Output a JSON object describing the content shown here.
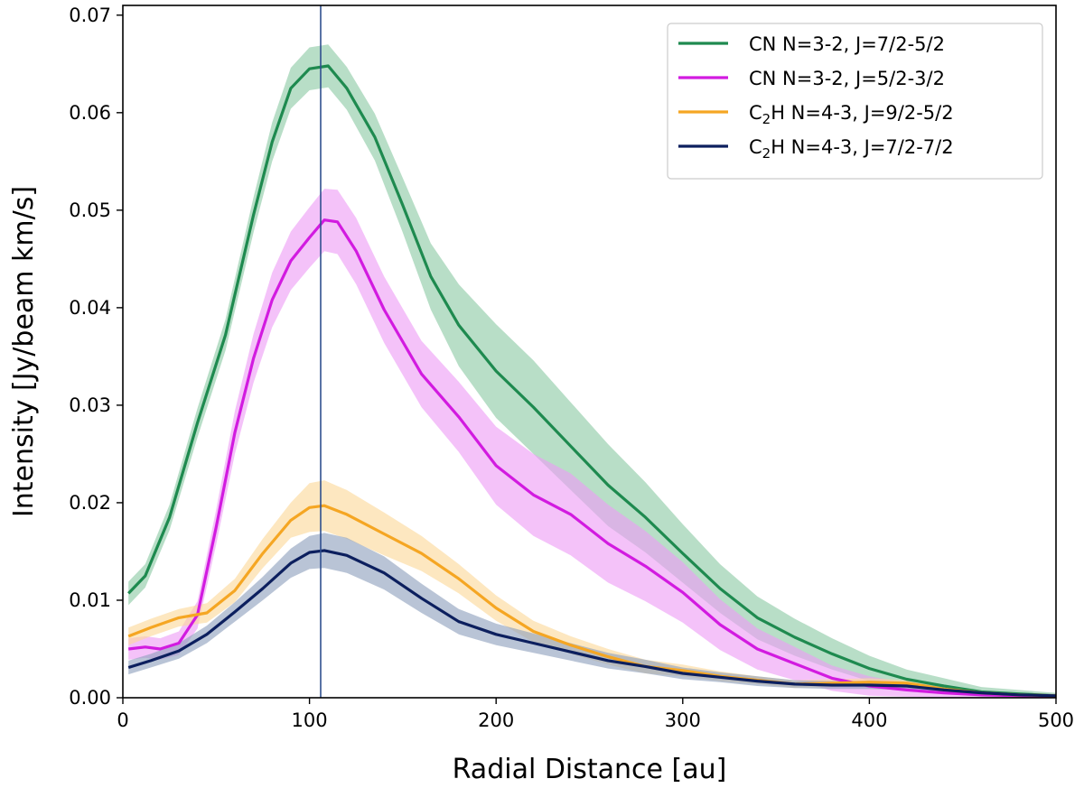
{
  "chart_data": {
    "type": "line",
    "xlabel": "Radial Distance [au]",
    "ylabel": "Intensity [Jy/beam km/s]",
    "xlim": [
      0,
      500
    ],
    "ylim": [
      0,
      0.071
    ],
    "xticks": [
      0,
      100,
      200,
      300,
      400,
      500
    ],
    "yticks": [
      0.0,
      0.01,
      0.02,
      0.03,
      0.04,
      0.05,
      0.06,
      0.07
    ],
    "ytick_labels": [
      "0.00",
      "0.01",
      "0.02",
      "0.03",
      "0.04",
      "0.05",
      "0.06",
      "0.07"
    ],
    "grid": false,
    "legend_position": "top-right",
    "vline_x": 106,
    "vline_color": "#2f4f8f",
    "series": [
      {
        "name": "CN N=3-2, J=7/2-5/2",
        "legend_main": "CN N=3-2, J=7/2-5/2",
        "legend_sub": "",
        "legend_tail": "",
        "color": "#1e8a4f",
        "band_color": "#8ccaa5",
        "x": [
          3,
          12,
          25,
          40,
          55,
          70,
          80,
          90,
          100,
          110,
          120,
          135,
          150,
          165,
          180,
          200,
          220,
          240,
          260,
          280,
          300,
          320,
          340,
          360,
          380,
          400,
          420,
          440,
          460,
          480,
          500
        ],
        "y": [
          0.0107,
          0.0125,
          0.0185,
          0.0282,
          0.0372,
          0.0495,
          0.057,
          0.0625,
          0.0645,
          0.0648,
          0.0625,
          0.0575,
          0.0505,
          0.0432,
          0.0382,
          0.0335,
          0.0298,
          0.0258,
          0.0218,
          0.0185,
          0.0148,
          0.0112,
          0.0082,
          0.0062,
          0.0045,
          0.003,
          0.0019,
          0.0012,
          0.0006,
          0.0004,
          0.0002
        ],
        "err": [
          0.0012,
          0.0012,
          0.0013,
          0.0015,
          0.0016,
          0.0018,
          0.002,
          0.0021,
          0.0022,
          0.0022,
          0.0022,
          0.0024,
          0.0028,
          0.0034,
          0.0042,
          0.0048,
          0.0048,
          0.0045,
          0.0042,
          0.0036,
          0.003,
          0.0025,
          0.0022,
          0.0019,
          0.0016,
          0.0013,
          0.001,
          0.0008,
          0.0005,
          0.0004,
          0.0003
        ]
      },
      {
        "name": "CN N=3-2, J=5/2-3/2",
        "legend_main": "CN N=3-2, J=5/2-3/2",
        "legend_sub": "",
        "legend_tail": "",
        "color": "#d21be0",
        "band_color": "#ee9cf5",
        "x": [
          3,
          12,
          20,
          30,
          40,
          50,
          60,
          70,
          80,
          90,
          100,
          108,
          115,
          125,
          140,
          160,
          180,
          200,
          220,
          240,
          260,
          280,
          300,
          320,
          340,
          360,
          380,
          400,
          420,
          440,
          460,
          480,
          500
        ],
        "y": [
          0.005,
          0.0052,
          0.005,
          0.0056,
          0.0085,
          0.0175,
          0.0272,
          0.0348,
          0.0408,
          0.0448,
          0.0472,
          0.049,
          0.0488,
          0.0458,
          0.0398,
          0.0332,
          0.0288,
          0.0238,
          0.0208,
          0.0188,
          0.0158,
          0.0135,
          0.0108,
          0.0075,
          0.005,
          0.0035,
          0.002,
          0.0012,
          0.0008,
          0.0005,
          0.0003,
          0.0002,
          0.0001
        ],
        "err": [
          0.0011,
          0.0011,
          0.0011,
          0.0012,
          0.0014,
          0.0018,
          0.0022,
          0.0025,
          0.0028,
          0.003,
          0.0031,
          0.0032,
          0.0033,
          0.0034,
          0.0034,
          0.0034,
          0.0036,
          0.004,
          0.0042,
          0.0042,
          0.004,
          0.0036,
          0.0031,
          0.0026,
          0.0021,
          0.0017,
          0.0013,
          0.001,
          0.0007,
          0.0005,
          0.0004,
          0.0003,
          0.0002
        ]
      },
      {
        "name": "C2H N=4-3, J=9/2-5/2",
        "legend_main": "C",
        "legend_sub": "2",
        "legend_tail": "H N=4-3, J=9/2-5/2",
        "color": "#f5a623",
        "band_color": "#fbd899",
        "x": [
          3,
          15,
          30,
          45,
          60,
          75,
          90,
          100,
          108,
          120,
          140,
          160,
          180,
          200,
          220,
          240,
          260,
          280,
          300,
          320,
          340,
          360,
          380,
          400,
          420,
          440,
          460,
          480,
          500
        ],
        "y": [
          0.0063,
          0.0072,
          0.0082,
          0.0087,
          0.011,
          0.0148,
          0.0182,
          0.0195,
          0.0197,
          0.0188,
          0.0168,
          0.0148,
          0.0122,
          0.0092,
          0.0068,
          0.0054,
          0.0042,
          0.0032,
          0.0028,
          0.0022,
          0.0018,
          0.0014,
          0.0015,
          0.0016,
          0.0015,
          0.0009,
          0.0005,
          0.0003,
          0.0002
        ],
        "err": [
          0.0009,
          0.0009,
          0.0009,
          0.001,
          0.0012,
          0.0015,
          0.0018,
          0.0025,
          0.0026,
          0.0025,
          0.0022,
          0.0018,
          0.0015,
          0.0013,
          0.0011,
          0.0009,
          0.0008,
          0.0007,
          0.0006,
          0.0005,
          0.0004,
          0.0004,
          0.0004,
          0.0004,
          0.0003,
          0.0003,
          0.0002,
          0.0002,
          0.0002
        ]
      },
      {
        "name": "C2H N=4-3, J=7/2-7/2",
        "legend_main": "C",
        "legend_sub": "2",
        "legend_tail": "H N=4-3, J=7/2-7/2",
        "color": "#0c1f5e",
        "band_color": "#8e9fbd",
        "x": [
          3,
          15,
          30,
          45,
          60,
          75,
          90,
          100,
          108,
          120,
          140,
          160,
          180,
          200,
          220,
          240,
          260,
          280,
          300,
          320,
          340,
          360,
          380,
          400,
          420,
          440,
          460,
          480,
          500
        ],
        "y": [
          0.0031,
          0.0038,
          0.0048,
          0.0065,
          0.0088,
          0.0112,
          0.0138,
          0.0149,
          0.0151,
          0.0146,
          0.0128,
          0.0102,
          0.0078,
          0.0065,
          0.0056,
          0.0047,
          0.0038,
          0.0032,
          0.0025,
          0.0021,
          0.0017,
          0.0014,
          0.0013,
          0.0013,
          0.0012,
          0.0008,
          0.0005,
          0.0003,
          0.0002
        ],
        "err": [
          0.0007,
          0.0007,
          0.0008,
          0.0009,
          0.001,
          0.0012,
          0.0015,
          0.0017,
          0.0018,
          0.0018,
          0.0017,
          0.0015,
          0.0013,
          0.0011,
          0.001,
          0.0009,
          0.0008,
          0.0007,
          0.0006,
          0.0005,
          0.0005,
          0.0004,
          0.0004,
          0.0004,
          0.0004,
          0.0003,
          0.0002,
          0.0002,
          0.0002
        ]
      }
    ]
  }
}
